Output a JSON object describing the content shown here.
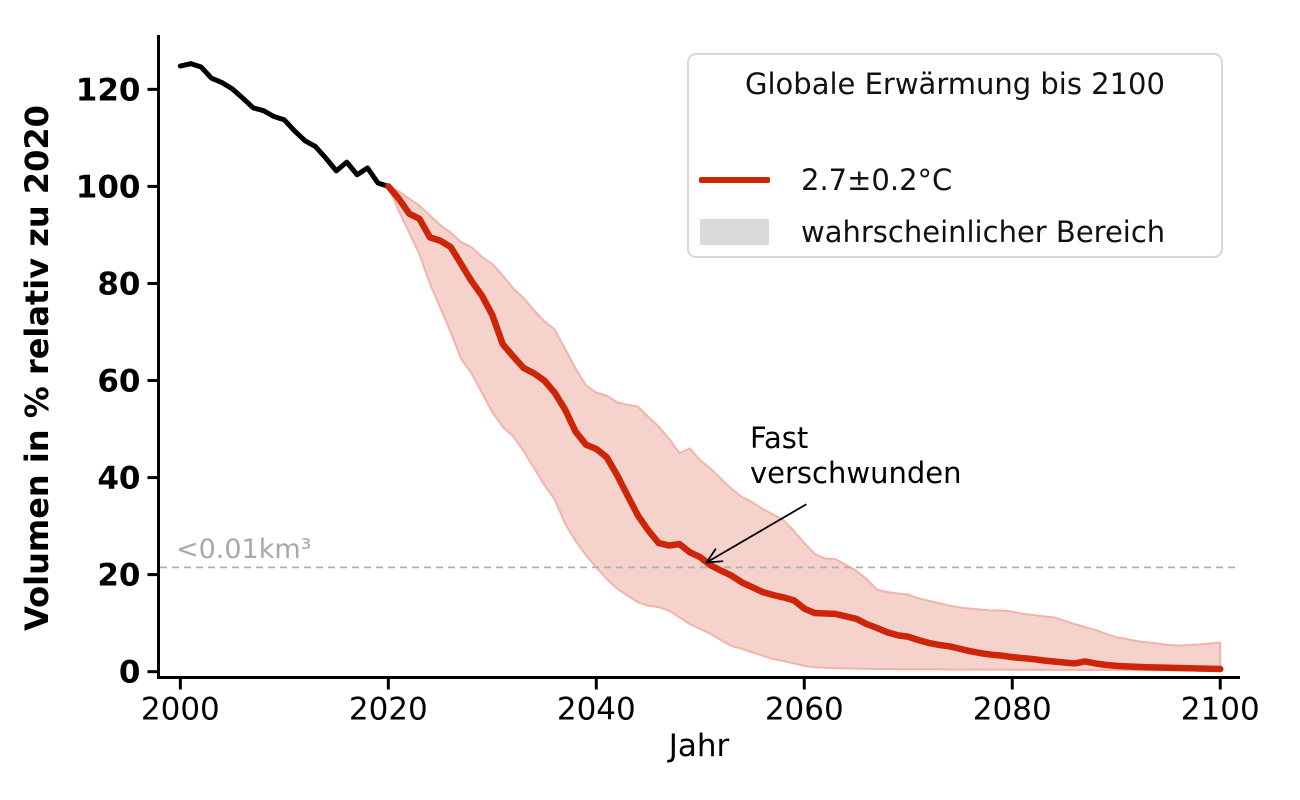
{
  "chart_data": {
    "type": "line",
    "xlabel": "Jahr",
    "ylabel": "Volumen in % relativ zu 2020",
    "x_ticks": [
      2000,
      2020,
      2040,
      2060,
      2080,
      2100
    ],
    "y_ticks": [
      0,
      20,
      40,
      60,
      80,
      100,
      120
    ],
    "xlim": [
      1997.9,
      2101.9
    ],
    "ylim": [
      -1.2,
      131.2
    ],
    "grid": false,
    "legend": {
      "position": "upper right",
      "title": "Globale Erwärmung bis 2100",
      "items": [
        {
          "swatch": "line",
          "label": "2.7±0.2°C"
        },
        {
          "swatch": "patch",
          "label": "wahrscheinlicher Bereich"
        }
      ]
    },
    "threshold_line": {
      "value": 21.5,
      "label": "<0.01km³",
      "style": "dashed"
    },
    "annotation": {
      "text_line1": "Fast",
      "text_line2": "verschwunden",
      "arrow_from": [
        2060.2,
        34.5
      ],
      "arrow_to": [
        2050.6,
        22.5
      ]
    },
    "colors": {
      "historical": "#000000",
      "projection": "#cc2508",
      "band_fill": "#f5d3cc",
      "band_edge": "#f0b4aa",
      "threshold": "#b0b0b0",
      "threshold_text": "#a9a9a9",
      "axis": "#000000"
    },
    "series": [
      {
        "name": "",
        "type": "line",
        "x0": 2000,
        "step": 1,
        "values": [
          124.8,
          125.3,
          124.6,
          122.3,
          121.4,
          120.1,
          118.2,
          116.2,
          115.6,
          114.4,
          113.7,
          111.4,
          109.4,
          108.2,
          105.8,
          103.2,
          105.0,
          102.4,
          103.8,
          100.7,
          100
        ]
      },
      {
        "name": "2.7±0.2°C",
        "type": "line",
        "x0": 2020,
        "step": 1,
        "values": [
          100,
          97.5,
          94.4,
          93.3,
          89.5,
          88.8,
          87.5,
          84.0,
          80.5,
          77.5,
          73.5,
          67.5,
          65.0,
          62.6,
          61.5,
          60.0,
          57.5,
          54.0,
          49.5,
          46.8,
          45.9,
          44.2,
          40.5,
          36.3,
          32.2,
          29.1,
          26.5,
          26.0,
          26.3,
          24.6,
          23.6,
          21.9,
          20.8,
          19.8,
          18.4,
          17.4,
          16.4,
          15.8,
          15.3,
          14.7,
          13.0,
          12.1,
          12.0,
          11.9,
          11.4,
          10.9,
          9.8,
          9.0,
          8.1,
          7.5,
          7.2,
          6.5,
          5.9,
          5.5,
          5.2,
          4.7,
          4.2,
          3.8,
          3.5,
          3.3,
          3.0,
          2.8,
          2.6,
          2.3,
          2.1,
          1.9,
          1.7,
          2.1,
          1.7,
          1.4,
          1.2,
          1.1,
          1.0,
          0.9,
          0.85,
          0.8,
          0.75,
          0.7,
          0.65,
          0.6,
          0.55
        ]
      },
      {
        "name": "wahrscheinlicher Bereich",
        "type": "band",
        "x0": 2020,
        "step": 1,
        "upper": [
          100,
          99,
          97.5,
          96,
          94,
          92,
          90.5,
          88.5,
          87.5,
          85.5,
          84,
          81.6,
          79,
          77,
          74.5,
          72.2,
          70.5,
          66.5,
          62.5,
          59,
          57.5,
          56.9,
          55.5,
          55,
          54.6,
          52.5,
          50.5,
          48,
          45,
          46,
          43.5,
          41.8,
          39.7,
          37.7,
          36,
          34.9,
          33.5,
          32.4,
          31.2,
          29,
          26.5,
          24.3,
          23.3,
          23.2,
          22,
          20.8,
          19.1,
          16.9,
          16.4,
          16.1,
          15.9,
          15.1,
          14.6,
          14.1,
          13.6,
          13.2,
          13,
          12.8,
          12.6,
          12.6,
          12.4,
          11.9,
          11.7,
          11.4,
          11.2,
          10.5,
          9.8,
          9.2,
          8.6,
          7.8,
          7.1,
          6.7,
          6.3,
          6.0,
          5.8,
          5.5,
          5.4,
          5.5,
          5.6,
          5.8,
          6.0
        ],
        "lower": [
          100,
          95,
          90.5,
          86,
          80,
          75,
          70,
          64.5,
          61.5,
          57.5,
          53.5,
          50.5,
          48.5,
          45.5,
          42,
          38.5,
          35.5,
          30.5,
          27,
          24,
          21.5,
          19.1,
          17.1,
          15.7,
          14.3,
          13.6,
          13.3,
          12.6,
          11.2,
          9.8,
          8.8,
          7.8,
          6.5,
          5.3,
          4.7,
          4.0,
          3.3,
          2.6,
          2.2,
          1.7,
          1.2,
          0.9,
          0.8,
          0.7,
          0.7,
          0.6,
          0.6,
          0.55,
          0.55,
          0.5,
          0.5,
          0.5,
          0.5,
          0.48,
          0.46,
          0.45,
          0.44,
          0.43,
          0.42,
          0.41,
          0.4,
          0.4,
          0.4,
          0.38,
          0.38,
          0.36,
          0.36,
          0.35,
          0.35,
          0.34,
          0.34,
          0.33,
          0.33,
          0.32,
          0.32,
          0.31,
          0.31,
          0.3,
          0.3,
          0.3,
          0.3
        ]
      }
    ]
  }
}
